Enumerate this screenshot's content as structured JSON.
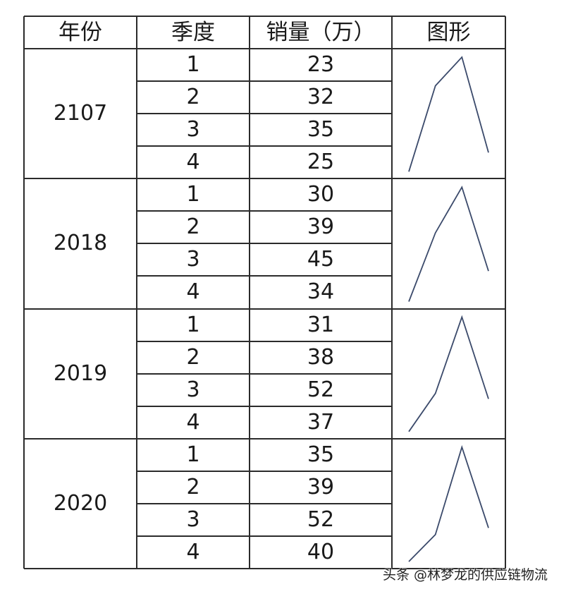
{
  "table": {
    "headers": [
      "年份",
      "季度",
      "销量（万）",
      "图形"
    ],
    "groups": [
      {
        "year": "2107",
        "rows": [
          {
            "quarter": "1",
            "sales": "23"
          },
          {
            "quarter": "2",
            "sales": "32"
          },
          {
            "quarter": "3",
            "sales": "35"
          },
          {
            "quarter": "4",
            "sales": "25"
          }
        ]
      },
      {
        "year": "2018",
        "rows": [
          {
            "quarter": "1",
            "sales": "30"
          },
          {
            "quarter": "2",
            "sales": "39"
          },
          {
            "quarter": "3",
            "sales": "45"
          },
          {
            "quarter": "4",
            "sales": "34"
          }
        ]
      },
      {
        "year": "2019",
        "rows": [
          {
            "quarter": "1",
            "sales": "31"
          },
          {
            "quarter": "2",
            "sales": "38"
          },
          {
            "quarter": "3",
            "sales": "52"
          },
          {
            "quarter": "4",
            "sales": "37"
          }
        ]
      },
      {
        "year": "2020",
        "rows": [
          {
            "quarter": "1",
            "sales": "35"
          },
          {
            "quarter": "2",
            "sales": "39"
          },
          {
            "quarter": "3",
            "sales": "52"
          },
          {
            "quarter": "4",
            "sales": "40"
          }
        ]
      }
    ]
  },
  "chart_data": {
    "type": "line",
    "x": [
      "1",
      "2",
      "3",
      "4"
    ],
    "series": [
      {
        "values": [
          23,
          32,
          35,
          25
        ]
      },
      {
        "values": [
          30,
          39,
          45,
          34
        ]
      },
      {
        "values": [
          31,
          38,
          52,
          37
        ]
      },
      {
        "values": [
          35,
          39,
          52,
          40
        ]
      }
    ]
  },
  "colors": {
    "sparkline": "#3b4a6b",
    "grid": "#2b2b2b"
  },
  "watermark": "头条 @林梦龙的供应链物流"
}
